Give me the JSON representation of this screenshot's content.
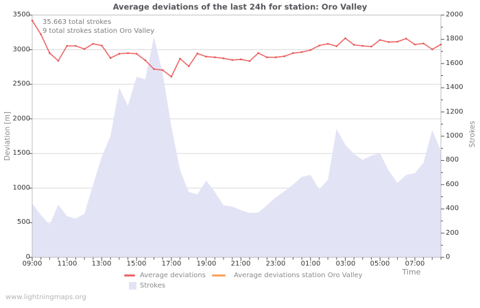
{
  "title": "Average deviations of the last 24h for station: Oro Valley",
  "annotations": {
    "total_strokes": "35.663 total strokes",
    "station_strokes": "9 total strokes station Oro Valley"
  },
  "watermark": "www.lightningmaps.org",
  "colors": {
    "deviation_line": "#ee6565",
    "deviation_marker": "#e05555",
    "station_line": "#f7a35c",
    "strokes_area": "#e3e3f6",
    "grid": "#d8d8d8",
    "axis_border": "#bcbcbc",
    "tick": "#555555"
  },
  "chart_data": {
    "type": "line",
    "title": "Average deviations of the last 24h for station: Oro Valley",
    "x": [
      "09:00",
      "09:30",
      "10:00",
      "10:30",
      "11:00",
      "11:30",
      "12:00",
      "12:30",
      "13:00",
      "13:30",
      "14:00",
      "14:30",
      "15:00",
      "15:30",
      "16:00",
      "16:30",
      "17:00",
      "17:30",
      "18:00",
      "18:30",
      "19:00",
      "19:30",
      "20:00",
      "20:30",
      "21:00",
      "21:30",
      "22:00",
      "22:30",
      "23:00",
      "23:30",
      "00:00",
      "00:30",
      "01:00",
      "01:30",
      "02:00",
      "02:30",
      "03:00",
      "03:30",
      "04:00",
      "04:30",
      "05:00",
      "05:30",
      "06:00",
      "06:30",
      "07:00",
      "07:30",
      "08:00",
      "08:30"
    ],
    "series": [
      {
        "name": "Average deviations",
        "type": "line",
        "axis": "left",
        "color": "#ee6565",
        "values": [
          3420,
          3220,
          2950,
          2840,
          3055,
          3055,
          3010,
          3085,
          3060,
          2880,
          2940,
          2950,
          2940,
          2845,
          2720,
          2705,
          2610,
          2870,
          2760,
          2945,
          2900,
          2890,
          2875,
          2850,
          2860,
          2835,
          2950,
          2890,
          2890,
          2905,
          2950,
          2965,
          2995,
          3060,
          3085,
          3050,
          3165,
          3070,
          3055,
          3045,
          3140,
          3110,
          3115,
          3160,
          3075,
          3090,
          3005,
          3075
        ]
      },
      {
        "name": "Average deviations station Oro Valley",
        "type": "line",
        "axis": "left",
        "color": "#f7a35c",
        "values": []
      },
      {
        "name": "Strokes",
        "type": "area",
        "axis": "right",
        "color": "#e3e3f6",
        "values": [
          445,
          350,
          270,
          435,
          340,
          320,
          360,
          600,
          830,
          1000,
          1400,
          1250,
          1490,
          1470,
          1820,
          1520,
          1080,
          720,
          540,
          520,
          635,
          540,
          430,
          420,
          390,
          365,
          370,
          430,
          495,
          545,
          600,
          665,
          680,
          560,
          640,
          1060,
          930,
          855,
          805,
          840,
          860,
          715,
          615,
          680,
          695,
          780,
          1050,
          880
        ]
      }
    ],
    "y_left": {
      "label": "Deviation [m]",
      "min": 0,
      "max": 3500,
      "ticks": [
        0,
        500,
        1000,
        1500,
        2000,
        2500,
        3000,
        3500
      ]
    },
    "y_right": {
      "label": "Strokes",
      "min": 0,
      "max": 2000,
      "ticks": [
        0,
        200,
        400,
        600,
        800,
        1000,
        1200,
        1400,
        1600,
        1800,
        2000
      ],
      "minor_step": 100
    },
    "x_axis": {
      "label": "Time",
      "labeled_every": 4
    },
    "grid": "horizontal",
    "legend_position": "bottom"
  }
}
